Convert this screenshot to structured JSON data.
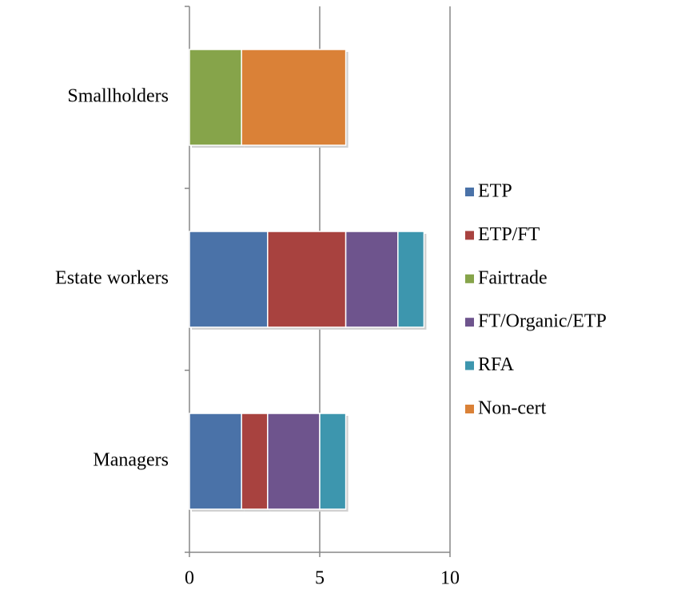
{
  "chart_data": {
    "type": "stacked-horizontal-bar",
    "categories": [
      "Managers",
      "Estate workers",
      "Smallholders"
    ],
    "series": [
      {
        "name": "ETP",
        "color": "#4a72a8",
        "values": [
          2,
          3,
          0
        ]
      },
      {
        "name": "ETP/FT",
        "color": "#a8423f",
        "values": [
          1,
          3,
          0
        ]
      },
      {
        "name": "Fairtrade",
        "color": "#86a44a",
        "values": [
          0,
          0,
          2
        ]
      },
      {
        "name": "FT/Organic/ETP",
        "color": "#6e548d",
        "values": [
          2,
          2,
          0
        ]
      },
      {
        "name": "RFA",
        "color": "#3d96ae",
        "values": [
          1,
          1,
          0
        ]
      },
      {
        "name": "Non-cert",
        "color": "#da8137",
        "values": [
          0,
          0,
          4
        ]
      }
    ],
    "xlim": [
      0,
      10
    ],
    "xticks": [
      0,
      5,
      10
    ],
    "grid": true,
    "legend": "right"
  }
}
